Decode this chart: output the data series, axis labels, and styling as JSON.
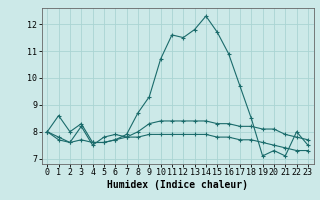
{
  "xlabel": "Humidex (Indice chaleur)",
  "ylabel": "",
  "background_color": "#cce9e8",
  "grid_color": "#aad4d3",
  "line_color": "#1a6b6b",
  "x_values": [
    0,
    1,
    2,
    3,
    4,
    5,
    6,
    7,
    8,
    9,
    10,
    11,
    12,
    13,
    14,
    15,
    16,
    17,
    18,
    19,
    20,
    21,
    22,
    23
  ],
  "series": [
    [
      8.0,
      8.6,
      8.0,
      8.3,
      7.6,
      7.6,
      7.7,
      7.9,
      8.7,
      9.3,
      10.7,
      11.6,
      11.5,
      11.8,
      12.3,
      11.7,
      10.9,
      9.7,
      8.5,
      7.1,
      7.3,
      7.1,
      8.0,
      7.5
    ],
    [
      8.0,
      7.8,
      7.6,
      8.2,
      7.5,
      7.8,
      7.9,
      7.8,
      8.0,
      8.3,
      8.4,
      8.4,
      8.4,
      8.4,
      8.4,
      8.3,
      8.3,
      8.2,
      8.2,
      8.1,
      8.1,
      7.9,
      7.8,
      7.7
    ],
    [
      8.0,
      7.7,
      7.6,
      7.7,
      7.6,
      7.6,
      7.7,
      7.8,
      7.8,
      7.9,
      7.9,
      7.9,
      7.9,
      7.9,
      7.9,
      7.8,
      7.8,
      7.7,
      7.7,
      7.6,
      7.5,
      7.4,
      7.3,
      7.3
    ]
  ],
  "ylim": [
    6.8,
    12.6
  ],
  "xlim": [
    -0.5,
    23.5
  ],
  "yticks": [
    7,
    8,
    9,
    10,
    11,
    12
  ],
  "xticks": [
    0,
    1,
    2,
    3,
    4,
    5,
    6,
    7,
    8,
    9,
    10,
    11,
    12,
    13,
    14,
    15,
    16,
    17,
    18,
    19,
    20,
    21,
    22,
    23
  ],
  "marker": "+",
  "markersize": 3,
  "linewidth": 0.8,
  "tick_labelsize": 6,
  "xlabel_fontsize": 7,
  "xlabel_fontweight": "bold"
}
